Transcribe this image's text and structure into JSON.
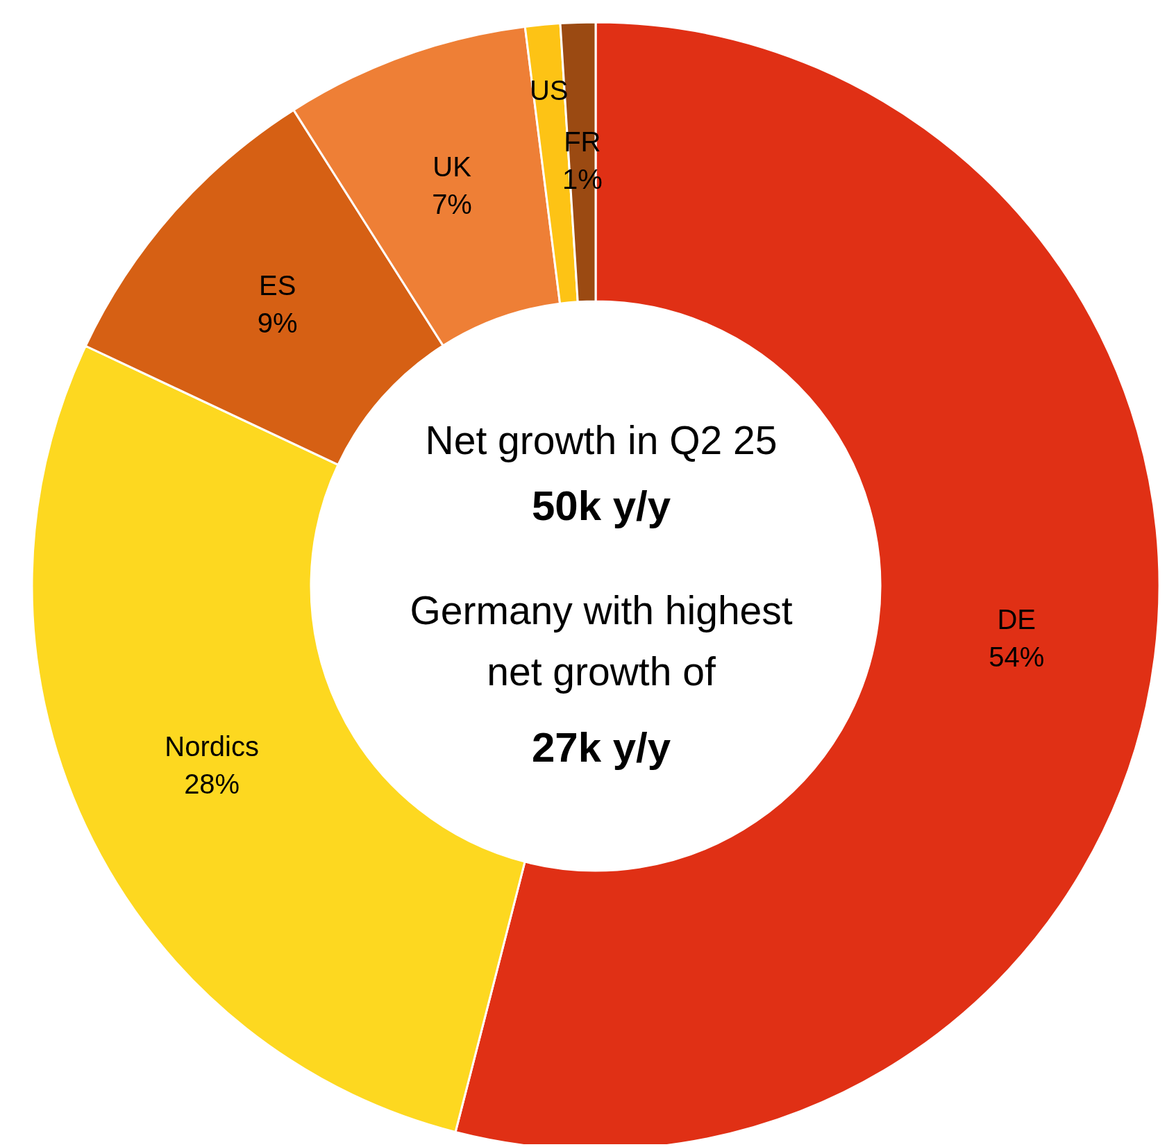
{
  "chart_data": {
    "type": "donut",
    "title": "Net growth in Q2 25",
    "annotations": [
      "50k y/y",
      "Germany with highest net growth of",
      "27k y/y"
    ],
    "categories": [
      "DE",
      "Nordics",
      "ES",
      "UK",
      "US",
      "FR"
    ],
    "values": [
      54,
      28,
      9,
      7,
      1,
      1
    ],
    "value_labels": [
      "54%",
      "28%",
      "9%",
      "7%",
      null,
      "1%"
    ],
    "colors": [
      "#e03015",
      "#fdd820",
      "#d66014",
      "#ee7f36",
      "#fdc315",
      "#9b4a12"
    ]
  }
}
